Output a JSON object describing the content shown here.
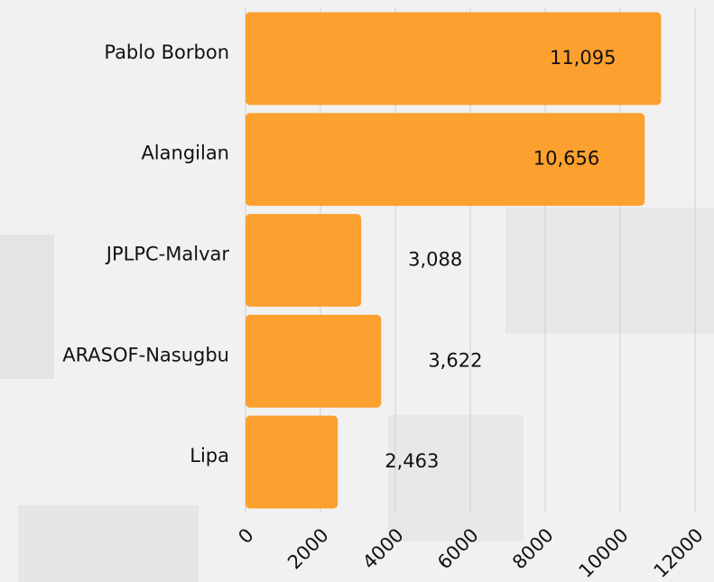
{
  "chart_data": {
    "type": "bar",
    "orientation": "horizontal",
    "categories": [
      "Pablo Borbon",
      "Alangilan",
      "JPLPC-Malvar",
      "ARASOF-Nasugbu",
      "Lipa"
    ],
    "values": [
      11095,
      10656,
      3088,
      3622,
      2463
    ],
    "value_labels": [
      "11,095",
      "10,656",
      "3,088",
      "3,622",
      "2,463"
    ],
    "color": "#fca02f",
    "xlim": [
      0,
      12000
    ],
    "xticks": [
      0,
      2000,
      4000,
      6000,
      8000,
      10000,
      12000
    ],
    "grid": true
  }
}
